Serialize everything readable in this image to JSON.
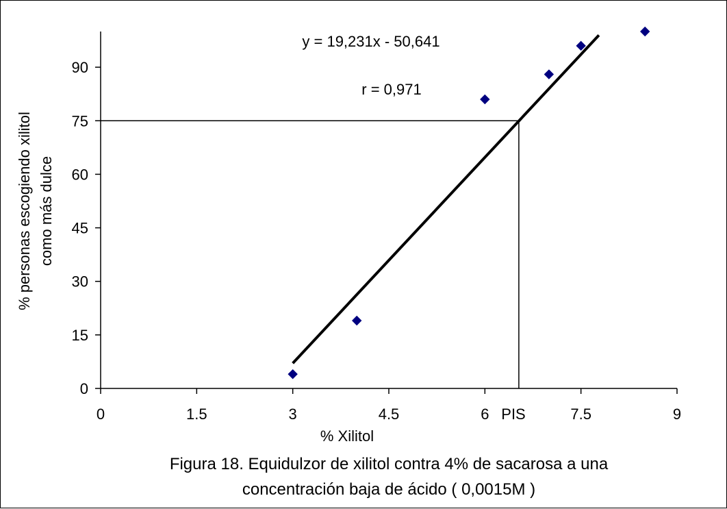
{
  "chart_data": {
    "type": "scatter",
    "title": "",
    "xlabel": "% Xilitol",
    "ylabel": [
      "% personas escogiendo xilitol",
      "como más dulce"
    ],
    "xlim": [
      0,
      9
    ],
    "ylim": [
      0,
      100
    ],
    "x_ticks": [
      0,
      1.5,
      3,
      4.5,
      6,
      7.5,
      9
    ],
    "x_tick_labels": [
      "0",
      "1.5",
      "3",
      "4.5",
      "6",
      "7.5",
      "9"
    ],
    "y_ticks": [
      0,
      15,
      30,
      45,
      60,
      75,
      90
    ],
    "y_tick_labels": [
      "0",
      "15",
      "30",
      "45",
      "60",
      "75",
      "90"
    ],
    "grid": false,
    "legend": "none",
    "series": [
      {
        "marker": "diamond",
        "color": "#000080",
        "x": [
          3,
          4,
          6,
          7,
          7.5,
          8.5
        ],
        "y": [
          4,
          19,
          81,
          88,
          96,
          100
        ]
      }
    ],
    "trendline": {
      "slope": 19.231,
      "intercept": -50.641,
      "x_range": [
        3,
        7.78
      ],
      "color": "#000000"
    },
    "reference_lines": {
      "y": 75,
      "x": 6.53,
      "x_label": "PIS"
    },
    "annotations": [
      "y = 19,231x - 50,641",
      "r = 0,971"
    ]
  },
  "caption": [
    "Figura 18. Equidulzor de xilitol contra 4% de sacarosa a una",
    "concentración baja de ácido  ( 0,0015M )"
  ]
}
